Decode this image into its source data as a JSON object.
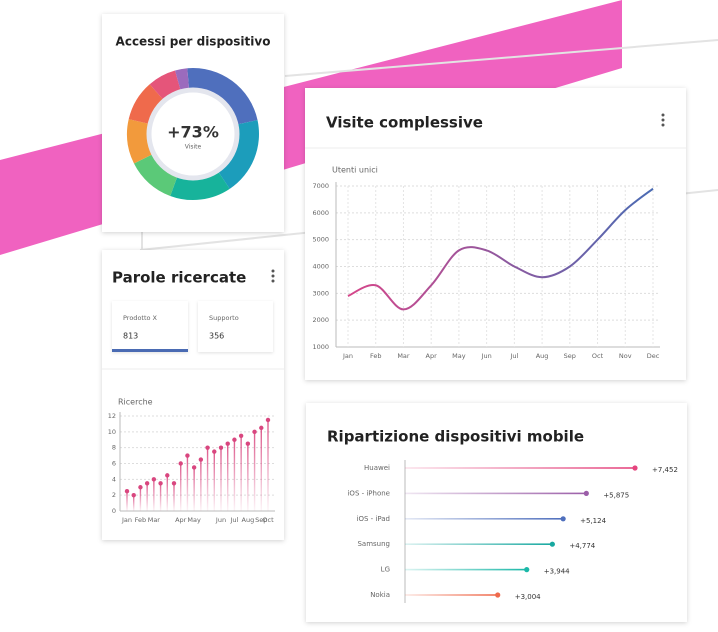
{
  "chart_data": [
    {
      "type": "pie",
      "title": "Accessi per dispositivo",
      "center_label": "+73%",
      "center_sublabel": "Visite",
      "values": [
        23,
        19,
        15,
        12,
        11,
        10,
        7,
        3
      ],
      "colors": [
        "#4f6fbd",
        "#1c9dbb",
        "#17b39b",
        "#5bc978",
        "#f29a3c",
        "#ef6a4c",
        "#e5557a",
        "#9b6bbd"
      ]
    },
    {
      "type": "line",
      "title": "Visite complessive",
      "y_label": "Utenti unici",
      "categories": [
        "Jan",
        "Feb",
        "Mar",
        "Apr",
        "May",
        "Jun",
        "Jul",
        "Aug",
        "Sep",
        "Oct",
        "Nov",
        "Dec"
      ],
      "series": [
        {
          "values": [
            2900,
            3300,
            2400,
            3300,
            4600,
            4600,
            4000,
            3600,
            4000,
            5000,
            6100,
            6900
          ],
          "color_start": "#d6468a",
          "color_end": "#4a6bb3"
        }
      ],
      "ylim": [
        1000,
        7000
      ],
      "yticks": [
        1000,
        2000,
        3000,
        4000,
        5000,
        6000,
        7000
      ],
      "grid": true
    },
    {
      "type": "lollipop",
      "title": "Parole ricercate",
      "y_label": "Ricerche",
      "categories": [
        "Jan",
        null,
        "Feb",
        null,
        "Mar",
        null,
        null,
        null,
        "Apr",
        null,
        "May",
        null,
        null,
        null,
        "Jun",
        null,
        "Jul",
        null,
        "Aug",
        null,
        "Sep",
        "Oct"
      ],
      "values": [
        2.5,
        2,
        3,
        3.5,
        4,
        3.5,
        4.5,
        3.5,
        6,
        7,
        5.5,
        6.5,
        8,
        7.5,
        8,
        8.5,
        9,
        9.5,
        8.5,
        10,
        10.5,
        11.5
      ],
      "color": "#d9467f",
      "ylim": [
        0,
        12
      ],
      "yticks": [
        0,
        2,
        4,
        6,
        8,
        10,
        12
      ],
      "grid": true
    },
    {
      "type": "hlollipop",
      "title": "Ripartizione dispositivi mobile",
      "categories": [
        "Huawei",
        "iOS - iPhone",
        "iOS - iPad",
        "Samsung",
        "LG",
        "Nokia"
      ],
      "values": [
        7452,
        5875,
        5124,
        4774,
        3944,
        3004
      ],
      "value_labels": [
        "+7,452",
        "+5,875",
        "+5,124",
        "+4,774",
        "+3,944",
        "+3,004"
      ],
      "colors": [
        "#e5457e",
        "#9b5ea8",
        "#4f6fbd",
        "#17a8a0",
        "#1bb8a8",
        "#ef6a4c"
      ]
    }
  ],
  "keyword_cards": [
    {
      "label": "Prodotto X",
      "value": 813
    },
    {
      "label": "Supporto",
      "value": 356
    }
  ]
}
